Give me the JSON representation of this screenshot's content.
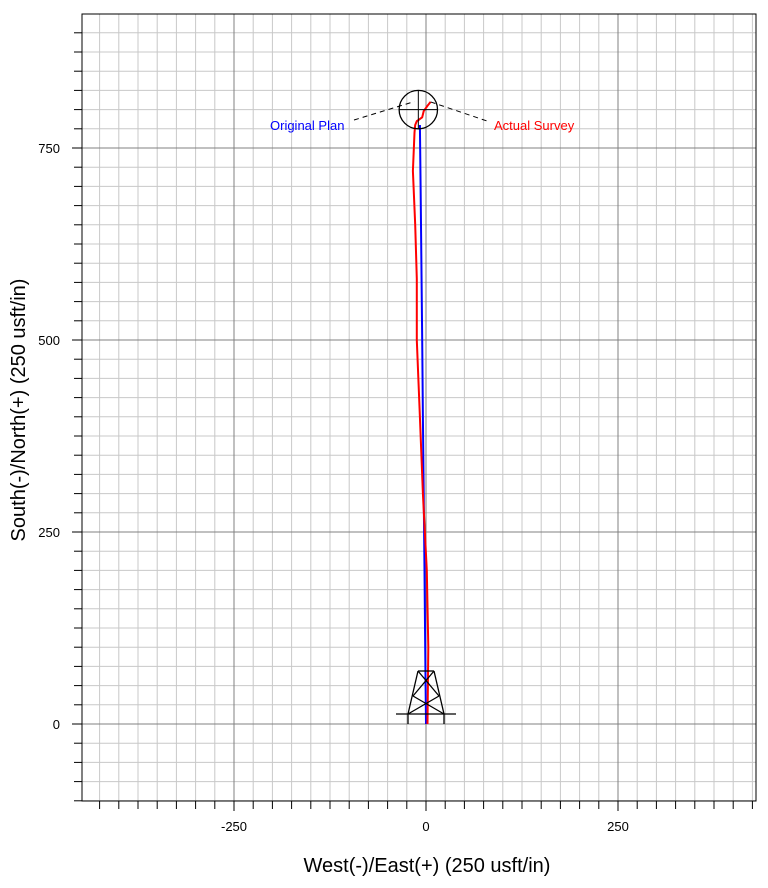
{
  "chart_data": {
    "type": "line",
    "xlabel": "West(-)/East(+) (250 usft/in)",
    "ylabel": "South(-)/North(+) (250 usft/in)",
    "xlim": [
      -450,
      430
    ],
    "ylim": [
      -100,
      920
    ],
    "x_ticks": [
      -250,
      0,
      250
    ],
    "y_ticks": [
      0,
      250,
      500,
      750
    ],
    "x_tick_labels": [
      "-250",
      "0",
      "250"
    ],
    "y_tick_labels": [
      "0",
      "250",
      "500",
      "750"
    ],
    "grid_minor_step": 25,
    "grid_major_step": 250,
    "grid": true,
    "series": [
      {
        "name": "Original Plan",
        "color": "#0000ff",
        "points": [
          [
            0,
            0
          ],
          [
            -1,
            100
          ],
          [
            -2,
            200
          ],
          [
            -3,
            300
          ],
          [
            -4,
            400
          ],
          [
            -5,
            500
          ],
          [
            -6,
            600
          ],
          [
            -7,
            700
          ],
          [
            -8,
            780
          ]
        ]
      },
      {
        "name": "Actual Survey",
        "color": "#ff0000",
        "points": [
          [
            2,
            0
          ],
          [
            3,
            100
          ],
          [
            1,
            200
          ],
          [
            -4,
            300
          ],
          [
            -8,
            400
          ],
          [
            -12,
            500
          ],
          [
            -12,
            580
          ],
          [
            -14,
            650
          ],
          [
            -17,
            720
          ],
          [
            -15,
            770
          ],
          [
            -14,
            780
          ],
          [
            -12,
            785
          ],
          [
            -9,
            787
          ],
          [
            -5,
            790
          ],
          [
            -3,
            798
          ],
          [
            2,
            805
          ],
          [
            6,
            810
          ]
        ]
      }
    ],
    "target": {
      "x": -10,
      "y": 800,
      "radius": 25
    },
    "rig": {
      "x": 0,
      "y": 0
    }
  },
  "annotations": {
    "original_plan": "Original Plan",
    "actual_survey": "Actual Survey"
  }
}
